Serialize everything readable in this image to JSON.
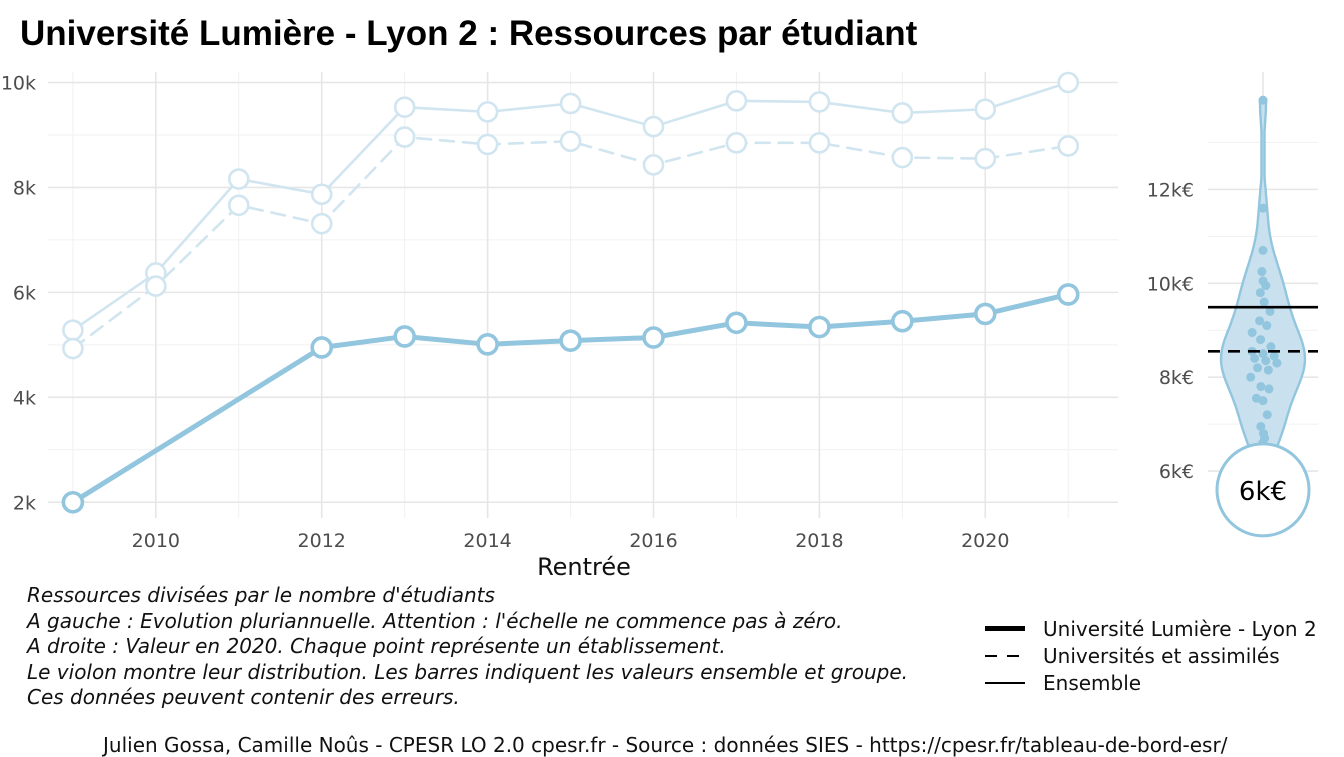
{
  "title": "Université Lumière - Lyon 2  :  Ressources par étudiant",
  "chart_data": [
    {
      "type": "line",
      "xlabel": "Rentrée",
      "ylabel": "",
      "xlim": [
        2008.7,
        2021.6
      ],
      "ylim": [
        1700,
        10200
      ],
      "x_ticks": [
        2010,
        2012,
        2014,
        2016,
        2018,
        2020
      ],
      "y_ticks": [
        2000,
        4000,
        6000,
        8000,
        10000
      ],
      "y_tick_labels": [
        "2k",
        "4k",
        "6k",
        "8k",
        "10k"
      ],
      "grid": true,
      "series": [
        {
          "name": "Université Lumière - Lyon 2",
          "style": "solid-thick",
          "color": "#92c5de",
          "points": [
            [
              2009,
              2000
            ],
            [
              2012,
              4950
            ],
            [
              2013,
              5160
            ],
            [
              2014,
              5010
            ],
            [
              2015,
              5080
            ],
            [
              2016,
              5140
            ],
            [
              2017,
              5420
            ],
            [
              2018,
              5340
            ],
            [
              2019,
              5450
            ],
            [
              2020,
              5590
            ],
            [
              2021,
              5960
            ]
          ]
        },
        {
          "name": "Universités et assimilés",
          "style": "dashed",
          "color": "#d1e5f0",
          "points": [
            [
              2009,
              4930
            ],
            [
              2010,
              6120
            ],
            [
              2011,
              7660
            ],
            [
              2012,
              7310
            ],
            [
              2013,
              8960
            ],
            [
              2014,
              8820
            ],
            [
              2015,
              8880
            ],
            [
              2016,
              8430
            ],
            [
              2017,
              8850
            ],
            [
              2018,
              8850
            ],
            [
              2019,
              8570
            ],
            [
              2020,
              8550
            ],
            [
              2021,
              8790
            ]
          ]
        },
        {
          "name": "Ensemble",
          "style": "solid",
          "color": "#d1e5f0",
          "points": [
            [
              2009,
              5280
            ],
            [
              2010,
              6370
            ],
            [
              2011,
              8160
            ],
            [
              2012,
              7870
            ],
            [
              2013,
              9530
            ],
            [
              2014,
              9440
            ],
            [
              2015,
              9600
            ],
            [
              2016,
              9160
            ],
            [
              2017,
              9650
            ],
            [
              2018,
              9630
            ],
            [
              2019,
              9420
            ],
            [
              2020,
              9490
            ],
            [
              2021,
              10000
            ]
          ]
        }
      ]
    },
    {
      "type": "violin",
      "ylim": [
        5000,
        14500
      ],
      "y_ticks": [
        6000,
        8000,
        10000,
        12000
      ],
      "y_tick_labels": [
        "6k€",
        "8k€",
        "10k€",
        "12k€"
      ],
      "fill_color": "#c9e1ef",
      "line_color": "#92c5de",
      "reference_lines": [
        {
          "name": "Ensemble",
          "value": 9490,
          "style": "solid"
        },
        {
          "name": "Universités et assimilés",
          "value": 8550,
          "style": "dashed"
        }
      ],
      "highlight": {
        "label": "6k€",
        "value": 5600
      },
      "points": [
        13900,
        11600,
        10700,
        10250,
        10050,
        9950,
        9800,
        9600,
        9400,
        9200,
        9100,
        8950,
        8800,
        8650,
        8550,
        8500,
        8450,
        8400,
        8350,
        8300,
        8200,
        8150,
        8000,
        7800,
        7750,
        7550,
        7500,
        7200,
        6950,
        6800,
        6700,
        6600
      ]
    }
  ],
  "caption_lines": [
    "Ressources divisées par le nombre d'étudiants",
    "A gauche : Evolution pluriannuelle. Attention : l'échelle ne commence pas à zéro.",
    "A droite : Valeur en 2020. Chaque point représente un établissement.",
    "Le violon montre leur distribution. Les barres indiquent les valeurs ensemble et groupe.",
    "Ces données peuvent contenir des erreurs."
  ],
  "legend": [
    {
      "label": "Université Lumière - Lyon 2",
      "style": "solid-thick"
    },
    {
      "label": "Universités et assimilés",
      "style": "dashed"
    },
    {
      "label": "Ensemble",
      "style": "solid"
    }
  ],
  "source": "Julien Gossa, Camille Noûs - CPESR LO 2.0 cpesr.fr - Source : données SIES - https://cpesr.fr/tableau-de-bord-esr/"
}
